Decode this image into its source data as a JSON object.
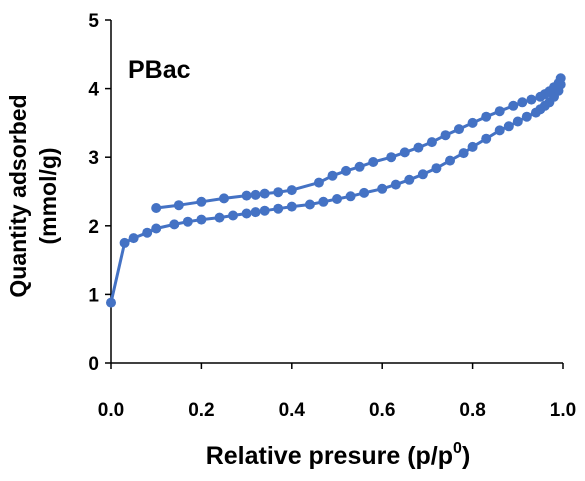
{
  "chart_data": {
    "type": "line",
    "annotation": "PBac",
    "ylabel_line1": "Quantity adsorbed",
    "ylabel_line2": "(mmol/g)",
    "xlabel_main": "Relative presure (p/p",
    "xlabel_sup": "0",
    "xlabel_end": ")",
    "xlim": [
      0,
      1.0
    ],
    "ylim": [
      0,
      5
    ],
    "xticks": [
      "0.0",
      "0.2",
      "0.4",
      "0.6",
      "0.8",
      "1.0"
    ],
    "yticks": [
      "0",
      "1",
      "2",
      "3",
      "4",
      "5"
    ],
    "grid": false,
    "color": "#4472C4",
    "series": [
      {
        "x": [
          0.0,
          0.03,
          0.05,
          0.08,
          0.1,
          0.14,
          0.17,
          0.2,
          0.24,
          0.27,
          0.3,
          0.32,
          0.34,
          0.37,
          0.4,
          0.44,
          0.47,
          0.5,
          0.53,
          0.56,
          0.6,
          0.63,
          0.66,
          0.69,
          0.72,
          0.75,
          0.78,
          0.8,
          0.83,
          0.86,
          0.88,
          0.9,
          0.92,
          0.94,
          0.95,
          0.96,
          0.97,
          0.98,
          0.99,
          0.995
        ],
        "y": [
          0.88,
          1.75,
          1.82,
          1.9,
          1.96,
          2.02,
          2.06,
          2.09,
          2.12,
          2.15,
          2.18,
          2.2,
          2.22,
          2.25,
          2.28,
          2.31,
          2.35,
          2.39,
          2.43,
          2.48,
          2.54,
          2.6,
          2.67,
          2.75,
          2.84,
          2.95,
          3.06,
          3.15,
          3.27,
          3.39,
          3.45,
          3.52,
          3.59,
          3.65,
          3.7,
          3.75,
          3.8,
          3.88,
          3.97,
          4.06
        ]
      },
      {
        "x": [
          0.995,
          0.99,
          0.98,
          0.97,
          0.96,
          0.95,
          0.93,
          0.91,
          0.89,
          0.86,
          0.83,
          0.8,
          0.77,
          0.74,
          0.71,
          0.68,
          0.65,
          0.62,
          0.58,
          0.55,
          0.52,
          0.49,
          0.46,
          0.4,
          0.37,
          0.34,
          0.32,
          0.3,
          0.25,
          0.2,
          0.15,
          0.1
        ],
        "y": [
          4.15,
          4.08,
          4.02,
          3.96,
          3.92,
          3.88,
          3.84,
          3.8,
          3.75,
          3.67,
          3.59,
          3.5,
          3.41,
          3.32,
          3.22,
          3.14,
          3.07,
          3.0,
          2.93,
          2.86,
          2.8,
          2.73,
          2.63,
          2.52,
          2.49,
          2.47,
          2.45,
          2.44,
          2.4,
          2.35,
          2.3,
          2.26
        ]
      }
    ]
  }
}
